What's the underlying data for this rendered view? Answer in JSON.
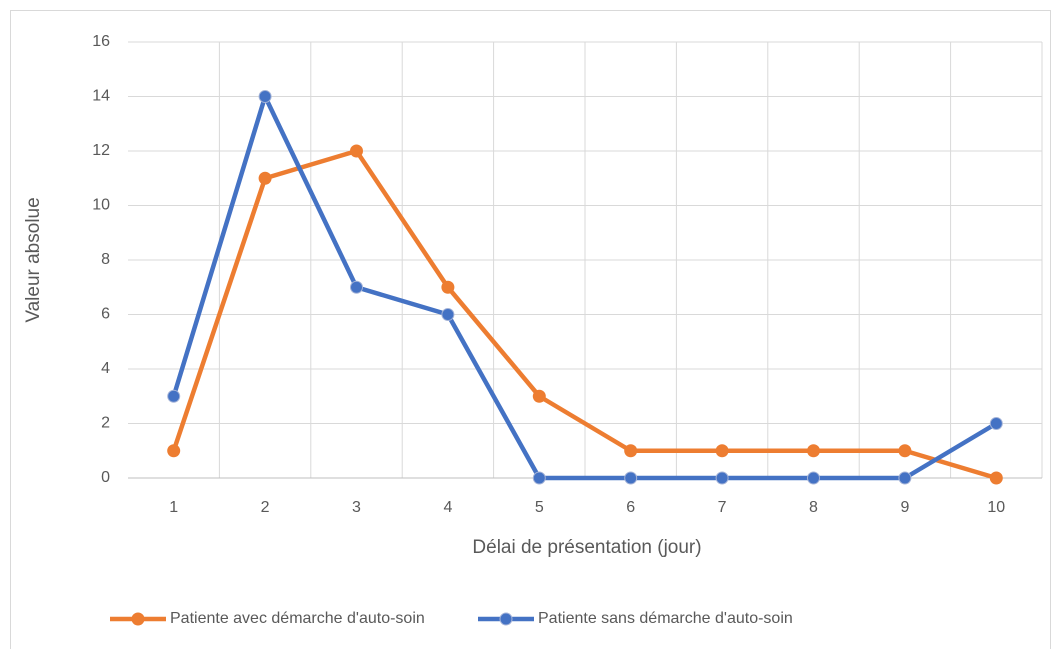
{
  "chart_data": {
    "type": "line",
    "x_label": "Délai de présentation (jour)",
    "y_label": "Valeur absolue",
    "categories": [
      "1",
      "2",
      "3",
      "4",
      "5",
      "6",
      "7",
      "8",
      "9",
      "10"
    ],
    "series": [
      {
        "name": "Patiente avec démarche d'auto-soin",
        "color": "#ed7d31",
        "values": [
          1,
          11,
          12,
          7,
          3,
          1,
          1,
          1,
          1,
          0
        ]
      },
      {
        "name": "Patiente sans démarche d'auto-soin",
        "color": "#4472c4",
        "values": [
          3,
          14,
          7,
          6,
          0,
          0,
          0,
          0,
          0,
          2
        ]
      }
    ],
    "ylim": [
      0,
      16
    ],
    "yticks": [
      0,
      2,
      4,
      6,
      8,
      10,
      12,
      14,
      16
    ],
    "grid": true,
    "legend": "bottom"
  }
}
